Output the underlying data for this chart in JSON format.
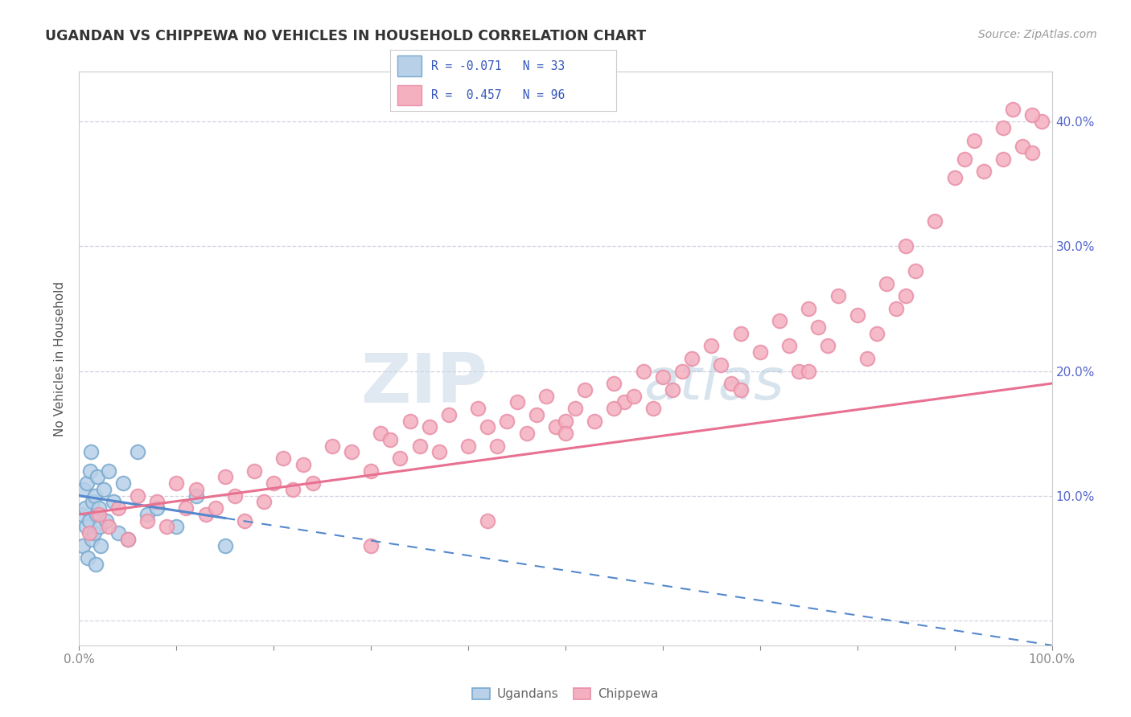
{
  "title": "UGANDAN VS CHIPPEWA NO VEHICLES IN HOUSEHOLD CORRELATION CHART",
  "source": "Source: ZipAtlas.com",
  "ylabel": "No Vehicles in Household",
  "legend_r1": "R = -0.071",
  "legend_n1": "N = 33",
  "legend_r2": "R =  0.457",
  "legend_n2": "N = 96",
  "ugandan_fill": "#b8d0e8",
  "ugandan_edge": "#7aaacf",
  "chippewa_fill": "#f5b0c0",
  "chippewa_edge": "#e890a8",
  "ugandan_line": "#5588cc",
  "chippewa_line": "#e87090",
  "background": "#ffffff",
  "watermark_zip": "ZIP",
  "watermark_atlas": "atlas",
  "watermark_color_zip": "#c0d0e0",
  "watermark_color_atlas": "#a8c8d8",
  "title_color": "#333333",
  "axis_tick_color": "#5566cc",
  "grid_color": "#ccccdd",
  "source_color": "#999999",
  "xmin": 0,
  "xmax": 100,
  "ymin": -2,
  "ymax": 44,
  "ugandan_x": [
    0.3,
    0.4,
    0.5,
    0.6,
    0.7,
    0.8,
    0.9,
    1.0,
    1.1,
    1.2,
    1.3,
    1.4,
    1.5,
    1.6,
    1.7,
    1.8,
    1.9,
    2.0,
    2.1,
    2.2,
    2.5,
    2.8,
    3.0,
    3.5,
    4.0,
    4.5,
    5.0,
    6.0,
    7.0,
    8.0,
    10.0,
    12.0,
    15.0
  ],
  "ugandan_y": [
    8.5,
    6.0,
    10.5,
    9.0,
    7.5,
    11.0,
    5.0,
    8.0,
    12.0,
    13.5,
    6.5,
    9.5,
    7.0,
    10.0,
    4.5,
    8.5,
    11.5,
    9.0,
    7.5,
    6.0,
    10.5,
    8.0,
    12.0,
    9.5,
    7.0,
    11.0,
    6.5,
    13.5,
    8.5,
    9.0,
    7.5,
    10.0,
    6.0
  ],
  "chippewa_x": [
    1.0,
    2.0,
    3.0,
    4.0,
    5.0,
    6.0,
    7.0,
    8.0,
    9.0,
    10.0,
    11.0,
    12.0,
    13.0,
    14.0,
    15.0,
    16.0,
    17.0,
    18.0,
    19.0,
    20.0,
    21.0,
    22.0,
    23.0,
    24.0,
    26.0,
    28.0,
    30.0,
    31.0,
    32.0,
    33.0,
    34.0,
    35.0,
    36.0,
    37.0,
    38.0,
    40.0,
    41.0,
    42.0,
    43.0,
    44.0,
    45.0,
    46.0,
    47.0,
    48.0,
    49.0,
    50.0,
    51.0,
    52.0,
    53.0,
    55.0,
    56.0,
    57.0,
    58.0,
    59.0,
    60.0,
    61.0,
    62.0,
    63.0,
    65.0,
    66.0,
    67.0,
    68.0,
    70.0,
    72.0,
    73.0,
    74.0,
    75.0,
    76.0,
    77.0,
    78.0,
    80.0,
    81.0,
    82.0,
    83.0,
    84.0,
    85.0,
    86.0,
    88.0,
    90.0,
    91.0,
    92.0,
    93.0,
    95.0,
    96.0,
    97.0,
    98.0,
    99.0,
    50.0,
    55.0,
    30.0,
    42.0,
    68.0,
    75.0,
    85.0,
    95.0,
    98.0
  ],
  "chippewa_y": [
    7.0,
    8.5,
    7.5,
    9.0,
    6.5,
    10.0,
    8.0,
    9.5,
    7.5,
    11.0,
    9.0,
    10.5,
    8.5,
    9.0,
    11.5,
    10.0,
    8.0,
    12.0,
    9.5,
    11.0,
    13.0,
    10.5,
    12.5,
    11.0,
    14.0,
    13.5,
    12.0,
    15.0,
    14.5,
    13.0,
    16.0,
    14.0,
    15.5,
    13.5,
    16.5,
    14.0,
    17.0,
    15.5,
    14.0,
    16.0,
    17.5,
    15.0,
    16.5,
    18.0,
    15.5,
    16.0,
    17.0,
    18.5,
    16.0,
    19.0,
    17.5,
    18.0,
    20.0,
    17.0,
    19.5,
    18.5,
    20.0,
    21.0,
    22.0,
    20.5,
    19.0,
    23.0,
    21.5,
    24.0,
    22.0,
    20.0,
    25.0,
    23.5,
    22.0,
    26.0,
    24.5,
    21.0,
    23.0,
    27.0,
    25.0,
    30.0,
    28.0,
    32.0,
    35.5,
    37.0,
    38.5,
    36.0,
    39.5,
    41.0,
    38.0,
    37.5,
    40.0,
    15.0,
    17.0,
    6.0,
    8.0,
    18.5,
    20.0,
    26.0,
    37.0,
    40.5
  ]
}
